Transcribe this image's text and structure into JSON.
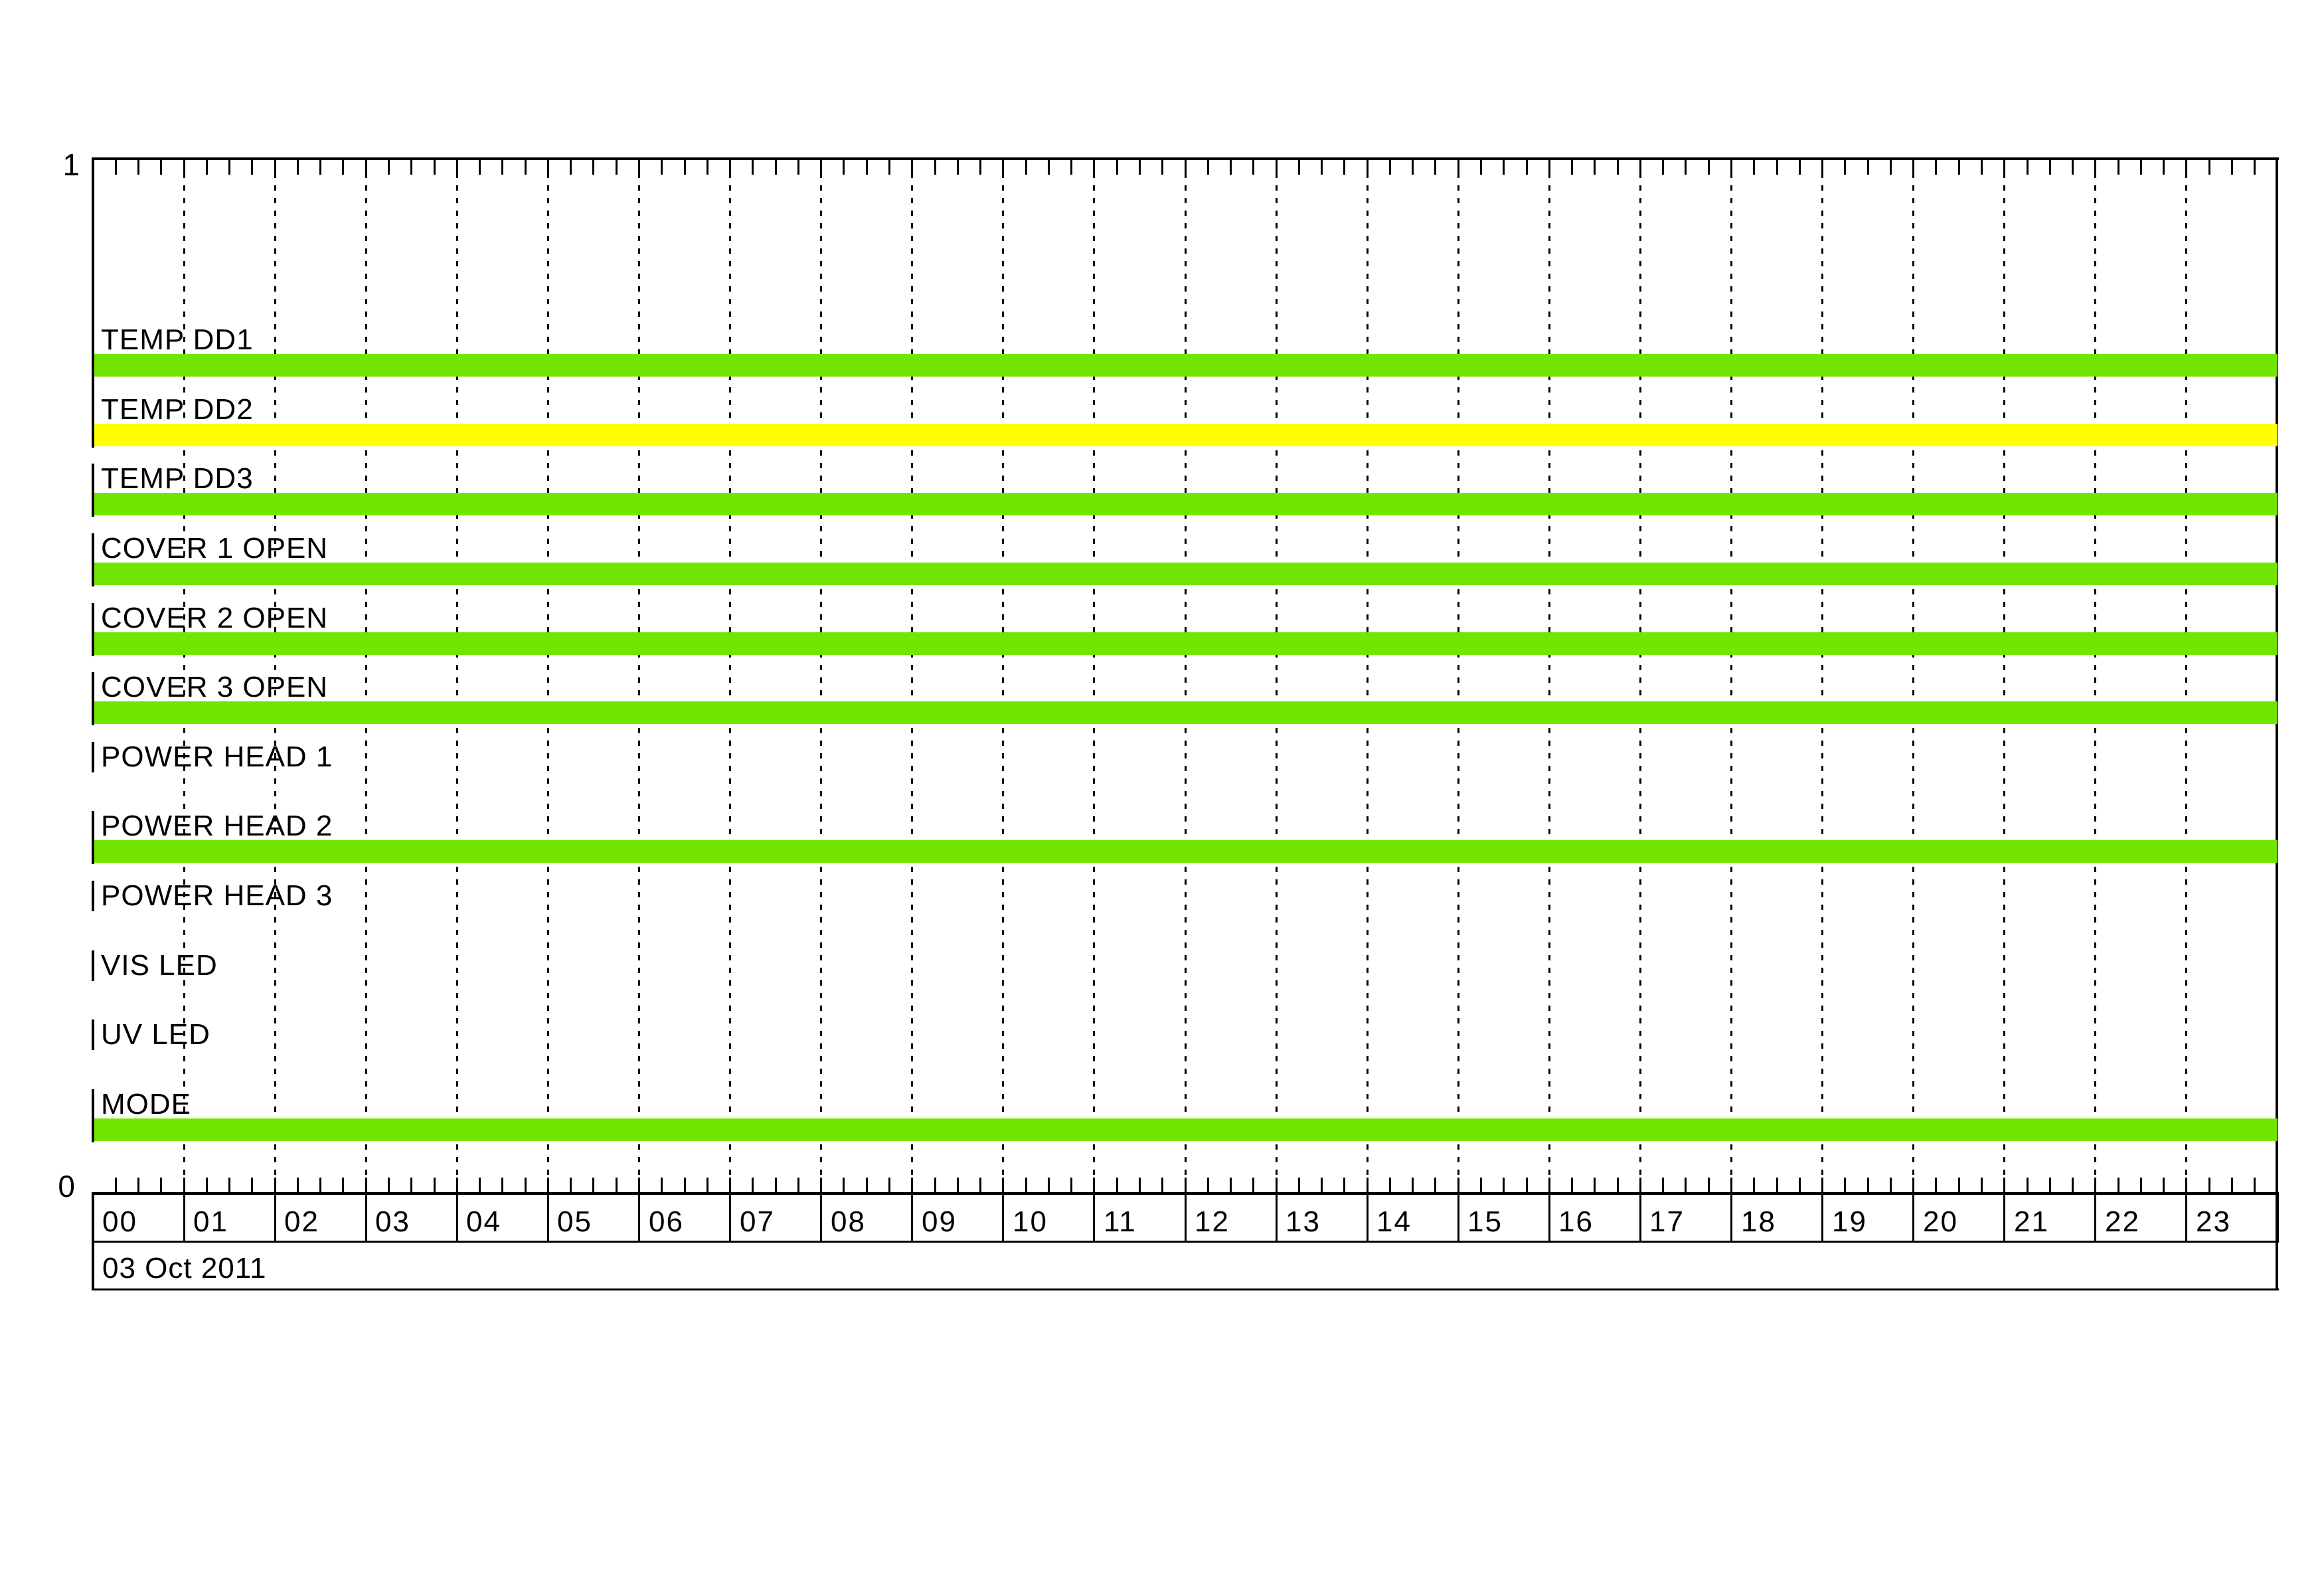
{
  "page": {
    "background_hex": "#FFFFFF"
  },
  "colors": {
    "bar_green_hex": "#72E600",
    "bar_yellow_hex": "#FFFF00",
    "axis_hex": "#000000"
  },
  "y_axis": {
    "top_label": "1",
    "bottom_label": "0"
  },
  "x_axis": {
    "date_label": "03 Oct 2011",
    "hours": [
      "00",
      "01",
      "02",
      "03",
      "04",
      "05",
      "06",
      "07",
      "08",
      "09",
      "10",
      "11",
      "12",
      "13",
      "14",
      "15",
      "16",
      "17",
      "18",
      "19",
      "20",
      "21",
      "22",
      "23"
    ],
    "minor_tick_minutes": 15
  },
  "chart_data": {
    "type": "timeline",
    "title": "",
    "date": "03 Oct 2011",
    "x_unit": "hour of day",
    "x_range": [
      0,
      24
    ],
    "x_tick_labels": [
      "00",
      "01",
      "02",
      "03",
      "04",
      "05",
      "06",
      "07",
      "08",
      "09",
      "10",
      "11",
      "12",
      "13",
      "14",
      "15",
      "16",
      "17",
      "18",
      "19",
      "20",
      "21",
      "22",
      "23"
    ],
    "x_minor_tick_minutes": 15,
    "y_levels": [
      0,
      1
    ],
    "grid": "dotted vertical line at every hour",
    "legend_position": "none",
    "series": [
      {
        "name": "TEMP DD1",
        "value": 1,
        "active_interval": [
          "00:00",
          "24:00"
        ],
        "bar_color": "green"
      },
      {
        "name": "TEMP DD2",
        "value": 1,
        "active_interval": [
          "00:00",
          "24:00"
        ],
        "bar_color": "yellow"
      },
      {
        "name": "TEMP DD3",
        "value": 1,
        "active_interval": [
          "00:00",
          "24:00"
        ],
        "bar_color": "green"
      },
      {
        "name": "COVER 1 OPEN",
        "value": 1,
        "active_interval": [
          "00:00",
          "24:00"
        ],
        "bar_color": "green"
      },
      {
        "name": "COVER 2 OPEN",
        "value": 1,
        "active_interval": [
          "00:00",
          "24:00"
        ],
        "bar_color": "green"
      },
      {
        "name": "COVER 3 OPEN",
        "value": 1,
        "active_interval": [
          "00:00",
          "24:00"
        ],
        "bar_color": "green"
      },
      {
        "name": "POWER HEAD 1",
        "value": 0,
        "active_interval": null,
        "bar_color": null
      },
      {
        "name": "POWER HEAD 2",
        "value": 1,
        "active_interval": [
          "00:00",
          "24:00"
        ],
        "bar_color": "green"
      },
      {
        "name": "POWER HEAD 3",
        "value": 0,
        "active_interval": null,
        "bar_color": null
      },
      {
        "name": "VIS LED",
        "value": 0,
        "active_interval": null,
        "bar_color": null
      },
      {
        "name": "UV LED",
        "value": 0,
        "active_interval": null,
        "bar_color": null
      },
      {
        "name": "MODE",
        "value": 1,
        "active_interval": [
          "00:00",
          "24:00"
        ],
        "bar_color": "green"
      }
    ]
  }
}
